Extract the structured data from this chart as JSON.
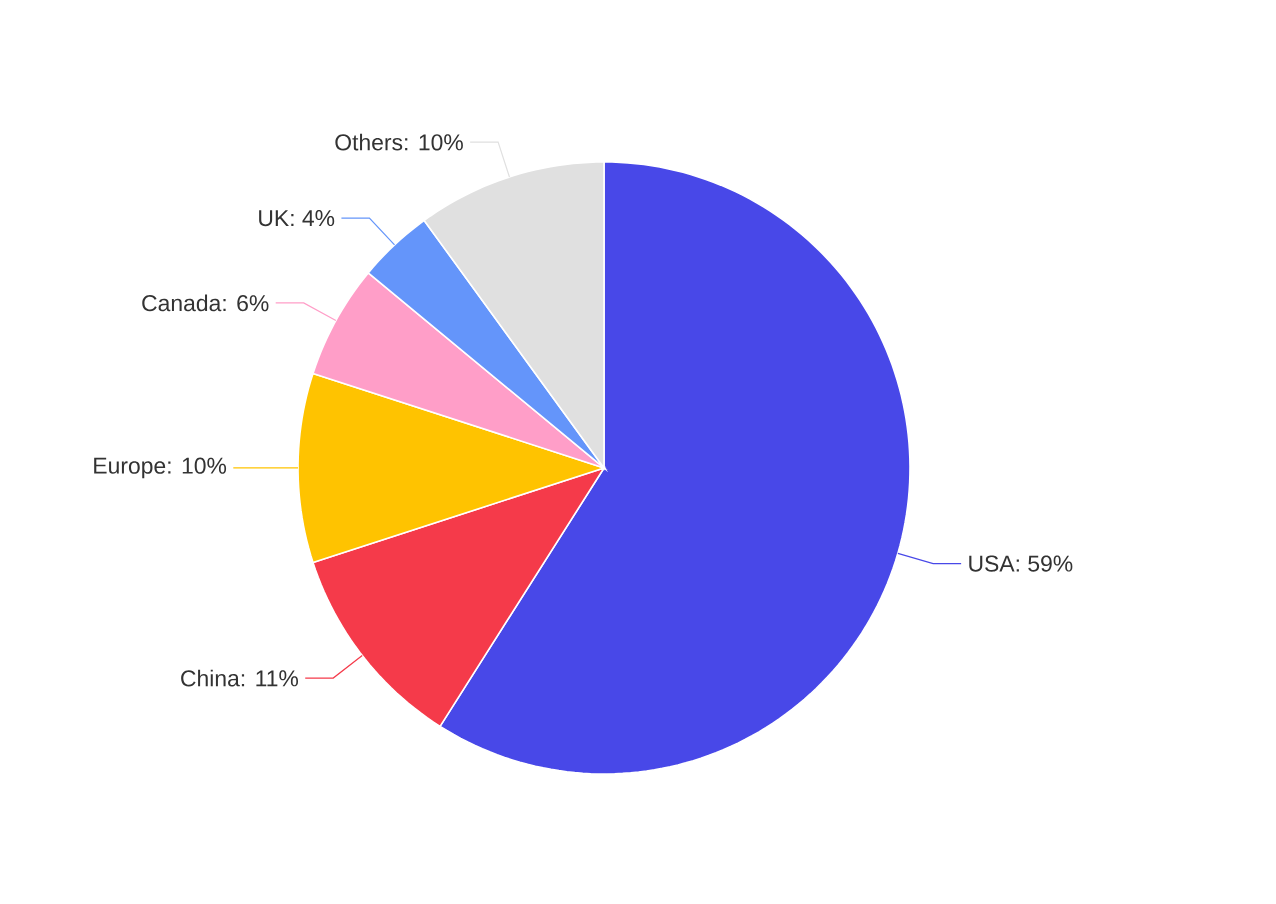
{
  "chart_data": {
    "type": "pie",
    "categories": [
      "USA: 59%",
      "China: 11%",
      "Europe: 10%",
      "Canada: 6%",
      "UK: 4%",
      "Others: 10%"
    ],
    "values": [
      59,
      11,
      10,
      6,
      4,
      10
    ],
    "colors": [
      "#4848e8",
      "#f53a4a",
      "#ffc300",
      "#ff9ec8",
      "#6495fa",
      "#e0e0e0"
    ]
  }
}
